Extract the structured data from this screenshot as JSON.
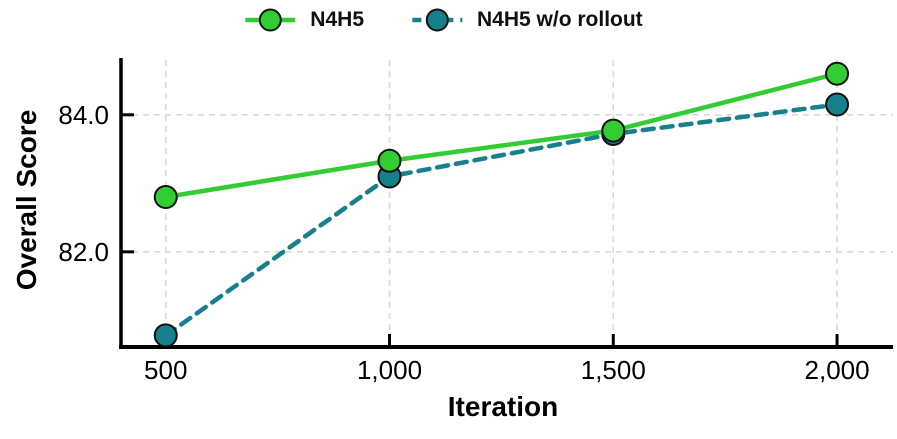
{
  "chart_data": {
    "type": "line",
    "x": [
      500,
      1000,
      1500,
      2000
    ],
    "series": [
      {
        "name": "N4H5",
        "values": [
          82.8,
          83.33,
          83.77,
          84.6
        ],
        "color": "#32cd32",
        "dash": "solid",
        "marker": "circle"
      },
      {
        "name": "N4H5 w/o rollout",
        "values": [
          80.78,
          83.1,
          83.72,
          84.15
        ],
        "color": "#17808d",
        "dash": "dashed",
        "marker": "circle"
      }
    ],
    "title": "",
    "xlabel": "Iteration",
    "ylabel": "Overall Score",
    "xticks": [
      500,
      1000,
      1500,
      2000
    ],
    "xtick_labels": [
      "500",
      "1,000",
      "1,500",
      "2,000"
    ],
    "yticks": [
      82.0,
      84.0
    ],
    "ytick_labels": [
      "82.0",
      "84.0"
    ],
    "xlim": [
      400,
      2125
    ],
    "ylim": [
      80.64,
      84.8
    ],
    "grid": true,
    "grid_style": "dashed",
    "legend_position": "top-center",
    "colors": {
      "background": "#ffffff",
      "grid": "#d9d9d9",
      "axis": "#000000",
      "marker_edge": "#111111",
      "text": "#000000"
    }
  }
}
